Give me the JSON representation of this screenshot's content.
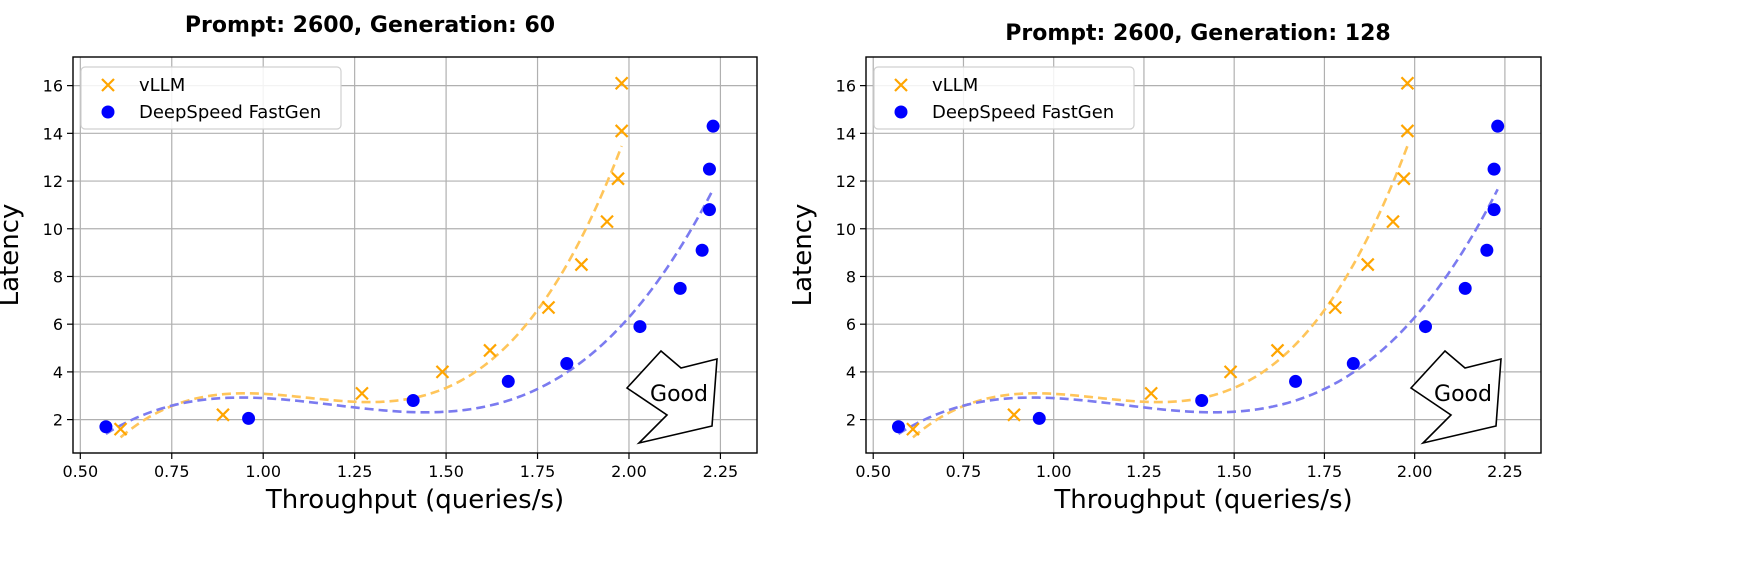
{
  "chart_data": [
    {
      "type": "scatter",
      "title": "Prompt: 2600, Generation: 60",
      "xlabel": "Throughput (queries/s)",
      "ylabel": "Latency",
      "xlim": [
        0.48,
        2.35
      ],
      "ylim": [
        0.6,
        17.2
      ],
      "xticks": [
        "0.50",
        "0.75",
        "1.00",
        "1.25",
        "1.50",
        "1.75",
        "2.00",
        "2.25"
      ],
      "yticks": [
        "2",
        "4",
        "6",
        "8",
        "10",
        "12",
        "14",
        "16"
      ],
      "grid": true,
      "legend": "top-left",
      "annotation": "Good",
      "series": [
        {
          "name": "vLLM",
          "marker": "x",
          "color": "#FFA500",
          "x": [
            0.61,
            0.89,
            1.27,
            1.49,
            1.62,
            1.78,
            1.87,
            1.94,
            1.97,
            1.98,
            1.98
          ],
          "y": [
            1.6,
            2.2,
            3.1,
            4.0,
            4.9,
            6.7,
            8.5,
            10.3,
            12.1,
            14.1,
            16.1
          ],
          "trend_color": "#FFC55A"
        },
        {
          "name": "DeepSpeed FastGen",
          "marker": "o",
          "color": "#0000FF",
          "x": [
            0.57,
            0.96,
            1.41,
            1.67,
            1.83,
            2.03,
            2.14,
            2.2,
            2.22,
            2.22,
            2.23
          ],
          "y": [
            1.7,
            2.05,
            2.8,
            3.6,
            4.35,
            5.9,
            7.5,
            9.1,
            10.8,
            12.5,
            14.3
          ],
          "trend_color": "#7B7BF0"
        }
      ]
    },
    {
      "type": "scatter",
      "title": "Prompt: 2600, Generation: 128",
      "xlabel": "Throughput (queries/s)",
      "ylabel": "Latency",
      "xlim": [
        0.48,
        2.35
      ],
      "ylim": [
        0.6,
        17.2
      ],
      "xticks": [
        "0.50",
        "0.75",
        "1.00",
        "1.25",
        "1.50",
        "1.75",
        "2.00",
        "2.25"
      ],
      "yticks": [
        "2",
        "4",
        "6",
        "8",
        "10",
        "12",
        "14",
        "16"
      ],
      "grid": true,
      "legend": "top-left",
      "annotation": "Good",
      "series": [
        {
          "name": "vLLM",
          "marker": "x",
          "color": "#FFA500",
          "x": [
            0.61,
            0.89,
            1.27,
            1.49,
            1.62,
            1.78,
            1.87,
            1.94,
            1.97,
            1.98,
            1.98
          ],
          "y": [
            1.6,
            2.2,
            3.1,
            4.0,
            4.9,
            6.7,
            8.5,
            10.3,
            12.1,
            14.1,
            16.1
          ],
          "trend_color": "#FFC55A"
        },
        {
          "name": "DeepSpeed FastGen",
          "marker": "o",
          "color": "#0000FF",
          "x": [
            0.57,
            0.96,
            1.41,
            1.67,
            1.83,
            2.03,
            2.14,
            2.2,
            2.22,
            2.22,
            2.23
          ],
          "y": [
            1.7,
            2.05,
            2.8,
            3.6,
            4.35,
            5.9,
            7.5,
            9.1,
            10.8,
            12.5,
            14.3
          ],
          "trend_color": "#7B7BF0"
        }
      ]
    }
  ]
}
